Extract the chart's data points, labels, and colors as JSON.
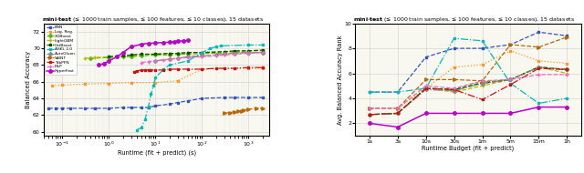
{
  "title_bold": "mini-test",
  "title_rest": " (≤ 1000 train samples, ≤ 100 features, ≤ 10 classes), 15 datasets",
  "left_ylabel": "Balanced Accuracy",
  "left_xlabel": "Runtime (fit + predict) (s)",
  "right_ylabel": "Avg. Balanced Accuracy Rank",
  "right_xlabel": "Runtime Budget (fit + predict)",
  "right_xticks": [
    "1s",
    "3s",
    "10s",
    "30s",
    "1m",
    "5m",
    "15m",
    "1h"
  ],
  "legend_entries": [
    "KNN",
    "Log. Reg.",
    "XGBoost",
    "LightGBM",
    "CatBoost",
    "ASKL 2.0",
    "AutoGluon",
    "SAINT",
    "TabPFN",
    "MLP",
    "HyperFast"
  ],
  "colors": {
    "KNN": "#3355bb",
    "Log. Reg.": "#ff9922",
    "XGBoost": "#55bb00",
    "LightGBM": "#bbbb00",
    "CatBoost": "#005500",
    "ASKL 2.0": "#00bbbb",
    "AutoGluon": "#888888",
    "SAINT": "#bb6600",
    "TabPFN": "#cc1111",
    "MLP": "#ee66cc",
    "HyperFast": "#bb00cc"
  },
  "styles": {
    "KNN": {
      "ls": "--",
      "marker": "s",
      "ms": 2.0,
      "lw": 0.9
    },
    "Log. Reg.": {
      "ls": ":",
      "marker": "s",
      "ms": 2.0,
      "lw": 0.9
    },
    "XGBoost": {
      "ls": "--",
      "marker": "D",
      "ms": 2.0,
      "lw": 0.9
    },
    "LightGBM": {
      "ls": "--",
      "marker": "+",
      "ms": 3.0,
      "lw": 0.9
    },
    "CatBoost": {
      "ls": "--",
      "marker": "s",
      "ms": 2.0,
      "lw": 0.9
    },
    "ASKL 2.0": {
      "ls": "-.",
      "marker": "s",
      "ms": 2.0,
      "lw": 0.9
    },
    "AutoGluon": {
      "ls": "-.",
      "marker": "D",
      "ms": 2.0,
      "lw": 0.9
    },
    "SAINT": {
      "ls": "--",
      "marker": ">",
      "ms": 2.5,
      "lw": 0.9
    },
    "TabPFN": {
      "ls": "-.",
      "marker": "s",
      "ms": 2.0,
      "lw": 0.9
    },
    "MLP": {
      "ls": "--",
      "marker": "+",
      "ms": 3.0,
      "lw": 0.9
    },
    "HyperFast": {
      "ls": "-",
      "marker": "o",
      "ms": 2.5,
      "lw": 1.1
    }
  },
  "left_data": {
    "KNN": {
      "x": [
        0.05,
        0.07,
        0.1,
        0.15,
        0.3,
        0.5,
        1.0,
        2.0,
        3.0,
        5.0,
        7.0,
        10.0,
        20.0,
        30.0,
        50.0,
        100.0,
        300.0,
        500.0,
        1000.0,
        2000.0
      ],
      "y": [
        62.8,
        62.8,
        62.8,
        62.8,
        62.8,
        62.8,
        62.8,
        62.9,
        62.9,
        62.9,
        62.9,
        63.1,
        63.3,
        63.5,
        63.7,
        64.0,
        64.1,
        64.1,
        64.1,
        64.1
      ]
    },
    "Log. Reg.": {
      "x": [
        0.06,
        0.1,
        0.3,
        1.0,
        3.0,
        10.0,
        30.0,
        100.0,
        300.0,
        1000.0,
        2000.0
      ],
      "y": [
        65.5,
        65.6,
        65.7,
        65.8,
        65.9,
        65.9,
        66.1,
        67.5,
        67.6,
        67.6,
        67.6
      ]
    },
    "XGBoost": {
      "x": [
        0.4,
        1.0,
        2.0,
        3.0,
        5.0,
        10.0,
        20.0,
        30.0,
        50.0,
        100.0,
        300.0,
        500.0,
        1000.0,
        2000.0
      ],
      "y": [
        68.8,
        68.9,
        69.0,
        69.0,
        69.1,
        69.2,
        69.2,
        69.3,
        69.3,
        69.4,
        69.4,
        69.5,
        69.5,
        69.5
      ]
    },
    "LightGBM": {
      "x": [
        0.3,
        0.5,
        1.0,
        2.0,
        3.0,
        5.0,
        10.0,
        20.0,
        30.0,
        50.0,
        100.0,
        300.0,
        500.0,
        1000.0,
        2000.0
      ],
      "y": [
        68.8,
        68.9,
        69.0,
        69.1,
        69.2,
        69.3,
        69.3,
        69.4,
        69.4,
        69.5,
        69.5,
        69.6,
        69.6,
        69.7,
        69.7
      ]
    },
    "CatBoost": {
      "x": [
        1.0,
        2.0,
        3.0,
        5.0,
        10.0,
        20.0,
        30.0,
        50.0,
        100.0,
        300.0,
        500.0,
        1000.0,
        2000.0
      ],
      "y": [
        69.0,
        69.1,
        69.2,
        69.3,
        69.3,
        69.4,
        69.4,
        69.5,
        69.5,
        69.6,
        69.7,
        69.7,
        69.8
      ]
    },
    "ASKL 2.0": {
      "x": [
        4.0,
        5.0,
        6.0,
        7.0,
        8.0,
        9.0,
        10.0,
        15.0,
        20.0,
        50.0,
        100.0,
        150.0,
        200.0,
        250.0,
        1000.0,
        2000.0
      ],
      "y": [
        60.2,
        60.5,
        61.5,
        63.0,
        64.5,
        65.5,
        66.5,
        67.5,
        68.0,
        68.5,
        69.5,
        70.0,
        70.2,
        70.3,
        70.4,
        70.4
      ]
    },
    "AutoGluon": {
      "x": [
        10.0,
        20.0,
        30.0,
        50.0,
        100.0,
        200.0,
        300.0,
        500.0,
        1000.0,
        2000.0
      ],
      "y": [
        68.5,
        68.7,
        68.8,
        69.0,
        69.1,
        69.2,
        69.3,
        69.4,
        69.5,
        69.5
      ]
    },
    "SAINT": {
      "x": [
        300.0,
        400.0,
        500.0,
        600.0,
        700.0,
        800.0,
        1000.0,
        1500.0,
        2000.0
      ],
      "y": [
        62.2,
        62.3,
        62.4,
        62.5,
        62.5,
        62.6,
        62.7,
        62.8,
        62.8
      ]
    },
    "TabPFN": {
      "x": [
        3.5,
        4.0,
        5.0,
        6.0,
        7.0,
        8.0,
        10.0,
        15.0,
        20.0,
        30.0,
        50.0,
        100.0,
        200.0,
        300.0,
        500.0,
        1000.0,
        2000.0
      ],
      "y": [
        67.2,
        67.3,
        67.4,
        67.4,
        67.4,
        67.4,
        67.4,
        67.4,
        67.5,
        67.5,
        67.5,
        67.5,
        67.6,
        67.6,
        67.6,
        67.7,
        67.7
      ]
    },
    "MLP": {
      "x": [
        5.0,
        7.0,
        10.0,
        15.0,
        20.0,
        30.0,
        50.0,
        100.0,
        200.0,
        300.0,
        500.0,
        1000.0,
        2000.0
      ],
      "y": [
        68.3,
        68.4,
        68.5,
        68.6,
        68.7,
        68.8,
        68.9,
        69.0,
        69.1,
        69.2,
        69.3,
        69.4,
        69.5
      ]
    },
    "HyperFast": {
      "x": [
        0.6,
        0.8,
        1.0,
        1.5,
        2.0,
        3.0,
        5.0,
        7.0,
        10.0,
        15.0,
        20.0,
        25.0,
        30.0,
        40.0,
        50.0
      ],
      "y": [
        68.0,
        68.2,
        68.5,
        69.0,
        69.5,
        70.2,
        70.5,
        70.6,
        70.65,
        70.7,
        70.75,
        70.8,
        70.85,
        70.9,
        70.95
      ]
    }
  },
  "right_data": {
    "KNN": [
      4.5,
      4.5,
      7.3,
      8.0,
      8.0,
      8.3,
      9.3,
      9.0
    ],
    "Log. Reg.": [
      3.2,
      3.2,
      4.8,
      6.5,
      6.7,
      7.8,
      7.0,
      6.8
    ],
    "XGBoost": [
      2.7,
      2.8,
      4.8,
      4.7,
      5.3,
      5.5,
      6.5,
      6.3
    ],
    "LightGBM": [
      2.7,
      2.8,
      4.8,
      4.5,
      5.0,
      5.5,
      6.5,
      6.0
    ],
    "CatBoost": [
      2.7,
      2.8,
      4.8,
      4.7,
      5.2,
      5.5,
      6.5,
      6.3
    ],
    "ASKL 2.0": [
      4.5,
      4.5,
      4.8,
      8.8,
      8.6,
      5.2,
      3.6,
      4.0
    ],
    "AutoGluon": [
      2.7,
      2.8,
      4.7,
      4.6,
      5.2,
      5.5,
      6.5,
      6.3
    ],
    "SAINT": [
      3.2,
      3.2,
      5.5,
      5.5,
      5.4,
      8.3,
      8.1,
      8.9
    ],
    "TabPFN": [
      2.7,
      2.8,
      4.8,
      4.7,
      3.9,
      5.1,
      6.4,
      6.3
    ],
    "MLP": [
      3.2,
      3.2,
      5.0,
      4.8,
      5.4,
      5.5,
      5.9,
      5.9
    ],
    "HyperFast": [
      2.0,
      1.7,
      2.8,
      2.8,
      2.8,
      2.8,
      3.3,
      3.3
    ]
  },
  "left_ylim": [
    59.5,
    73
  ],
  "right_ylim": [
    1,
    10
  ],
  "bg_color": "#f8f8f0"
}
